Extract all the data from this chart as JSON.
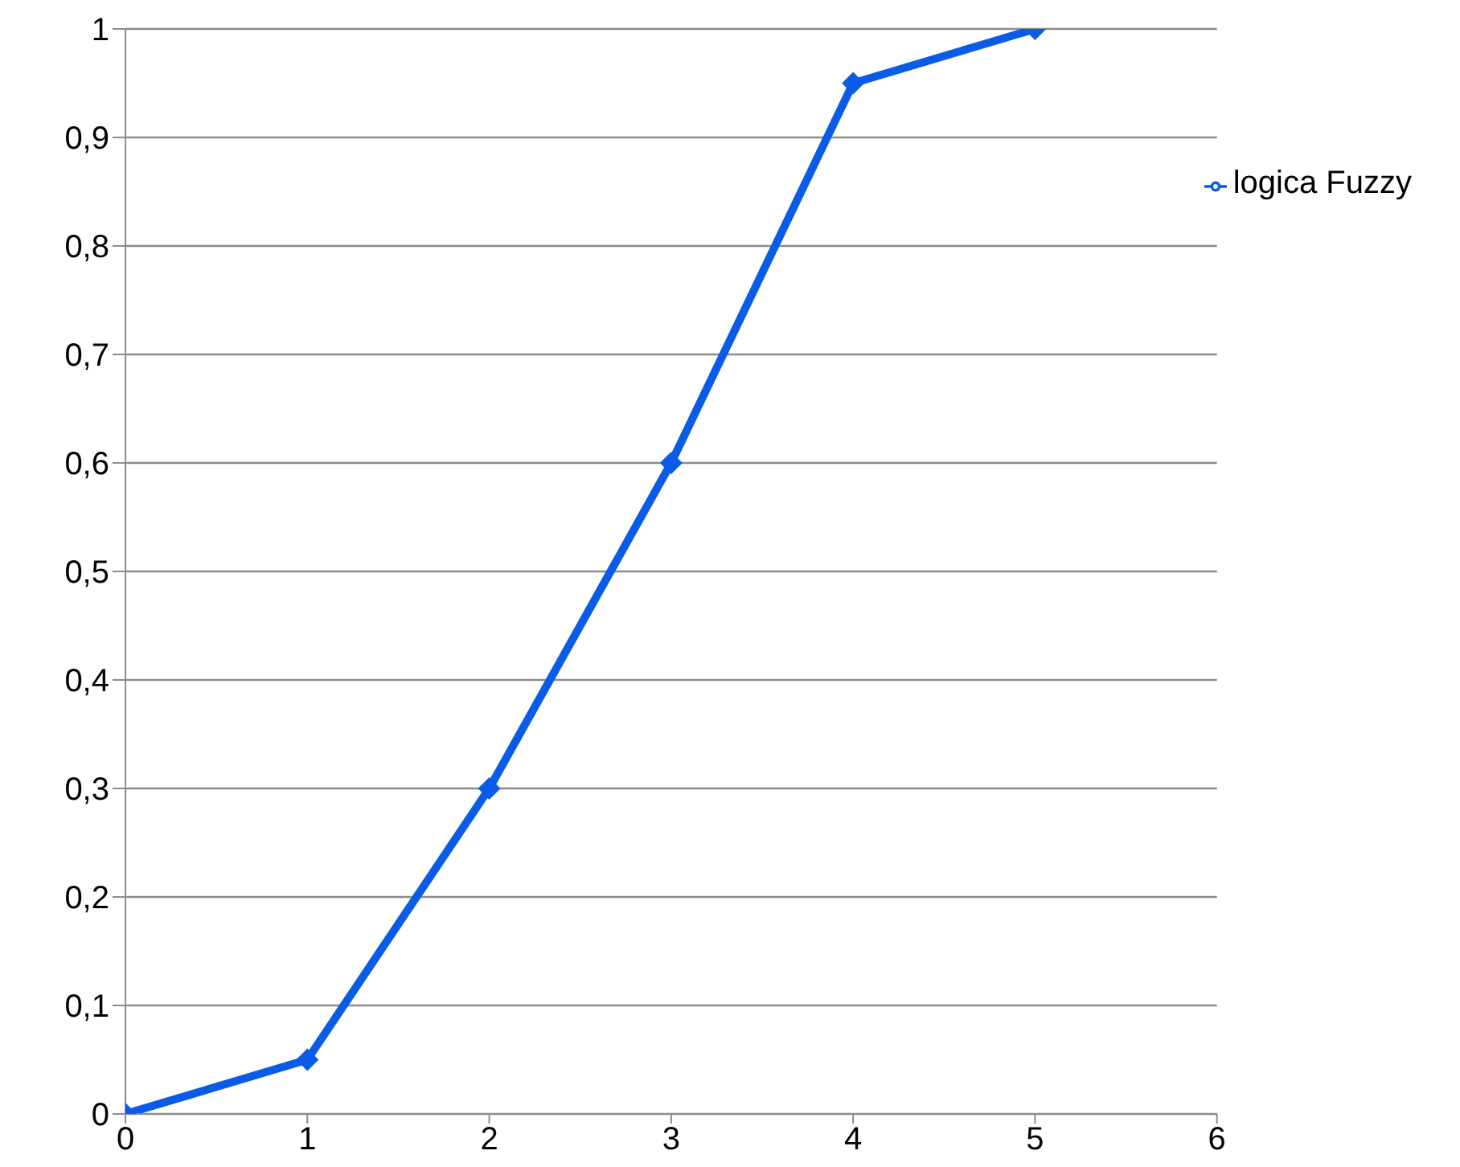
{
  "chart_data": {
    "type": "line",
    "x": [
      0,
      1,
      2,
      3,
      4,
      5
    ],
    "series": [
      {
        "name": "logica Fuzzy",
        "color": "#0a5ce6",
        "values": [
          0,
          0.05,
          0.3,
          0.6,
          0.95,
          1
        ]
      }
    ],
    "xlim": [
      0,
      6
    ],
    "xticks": [
      0,
      1,
      2,
      3,
      4,
      5,
      6
    ],
    "ylim": [
      0,
      1
    ],
    "yticks": [
      0,
      {
        "value": 0.1,
        "label": "0,1"
      },
      {
        "value": 0.2,
        "label": "0,2"
      },
      {
        "value": 0.3,
        "label": "0,3"
      },
      {
        "value": 0.4,
        "label": "0,4"
      },
      {
        "value": 0.5,
        "label": "0,5"
      },
      {
        "value": 0.6,
        "label": "0,6"
      },
      {
        "value": 0.7,
        "label": "0,7"
      },
      {
        "value": 0.8,
        "label": "0,8"
      },
      {
        "value": 0.9,
        "label": "0,9"
      },
      1
    ],
    "grid": "y",
    "legend": "top right",
    "marker": "diamond",
    "line_style": "solid"
  }
}
